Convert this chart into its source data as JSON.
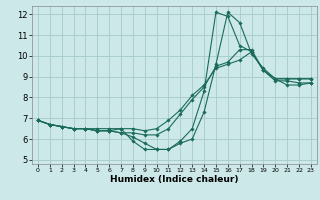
{
  "xlabel": "Humidex (Indice chaleur)",
  "bg_color": "#cce8e8",
  "grid_color": "#aacece",
  "line_color": "#1a6b5a",
  "xlim": [
    -0.5,
    23.5
  ],
  "ylim": [
    4.8,
    12.4
  ],
  "xticks": [
    0,
    1,
    2,
    3,
    4,
    5,
    6,
    7,
    8,
    9,
    10,
    11,
    12,
    13,
    14,
    15,
    16,
    17,
    18,
    19,
    20,
    21,
    22,
    23
  ],
  "yticks": [
    5,
    6,
    7,
    8,
    9,
    10,
    11,
    12
  ],
  "lines": [
    {
      "x": [
        0,
        1,
        2,
        3,
        4,
        5,
        6,
        7,
        8,
        9,
        10,
        11,
        12,
        13,
        14,
        15,
        16,
        17,
        18,
        19,
        20,
        21,
        22,
        23
      ],
      "y": [
        6.9,
        6.7,
        6.6,
        6.5,
        6.5,
        6.4,
        6.4,
        6.5,
        5.9,
        5.5,
        5.5,
        5.5,
        5.8,
        6.0,
        7.3,
        9.6,
        12.1,
        11.6,
        10.1,
        9.4,
        8.9,
        8.6,
        8.6,
        8.7
      ]
    },
    {
      "x": [
        0,
        1,
        2,
        3,
        4,
        5,
        6,
        7,
        8,
        9,
        10,
        11,
        12,
        13,
        14,
        15,
        16,
        17,
        18,
        19,
        20,
        21,
        22,
        23
      ],
      "y": [
        6.9,
        6.7,
        6.6,
        6.5,
        6.5,
        6.4,
        6.4,
        6.3,
        6.1,
        5.8,
        5.5,
        5.5,
        5.9,
        6.5,
        8.3,
        12.1,
        11.9,
        10.5,
        10.2,
        9.3,
        8.8,
        8.8,
        8.7,
        8.7
      ]
    },
    {
      "x": [
        0,
        1,
        2,
        3,
        4,
        5,
        6,
        7,
        8,
        9,
        10,
        11,
        12,
        13,
        14,
        15,
        16,
        17,
        18,
        19,
        20,
        21,
        22,
        23
      ],
      "y": [
        6.9,
        6.7,
        6.6,
        6.5,
        6.5,
        6.4,
        6.4,
        6.3,
        6.3,
        6.2,
        6.2,
        6.5,
        7.2,
        7.9,
        8.5,
        9.5,
        9.7,
        10.3,
        10.3,
        9.3,
        8.9,
        8.9,
        8.9,
        8.9
      ]
    },
    {
      "x": [
        0,
        1,
        2,
        3,
        4,
        5,
        6,
        7,
        8,
        9,
        10,
        11,
        12,
        13,
        14,
        15,
        16,
        17,
        18,
        19,
        20,
        21,
        22,
        23
      ],
      "y": [
        6.9,
        6.7,
        6.6,
        6.5,
        6.5,
        6.5,
        6.5,
        6.5,
        6.5,
        6.4,
        6.5,
        6.9,
        7.4,
        8.1,
        8.6,
        9.4,
        9.6,
        9.8,
        10.2,
        9.3,
        8.9,
        8.9,
        8.9,
        8.9
      ]
    }
  ]
}
